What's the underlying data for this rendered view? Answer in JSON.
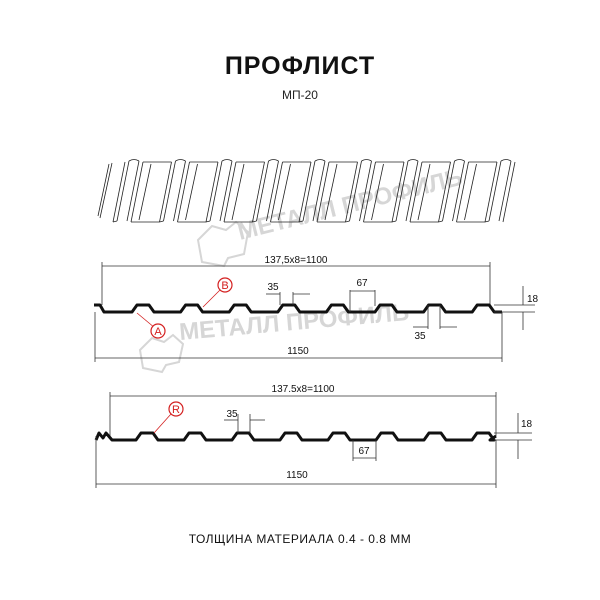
{
  "title": "ПРОФЛИСТ",
  "subtitle": "МП-20",
  "watermark": "МЕТАЛЛ ПРОФИЛЬ",
  "profile_a": {
    "pitch_label": "137,5x8=1100",
    "total_label": "1150",
    "rib_top_label": "35",
    "valley_label": "67",
    "bottom_label": "35",
    "height_label": "18",
    "callouts": [
      "A",
      "B"
    ]
  },
  "profile_r": {
    "pitch_label": "137.5x8=1100",
    "total_label": "1150",
    "rib_top_label": "35",
    "valley_label": "67",
    "height_label": "18",
    "callouts": [
      "R"
    ]
  },
  "footer": "ТОЛЩИНА МАТЕРИАЛА 0.4 - 0.8 ММ",
  "colors": {
    "callout": "#d42020",
    "profile": "#111111",
    "watermark": "#d6d6d6"
  }
}
